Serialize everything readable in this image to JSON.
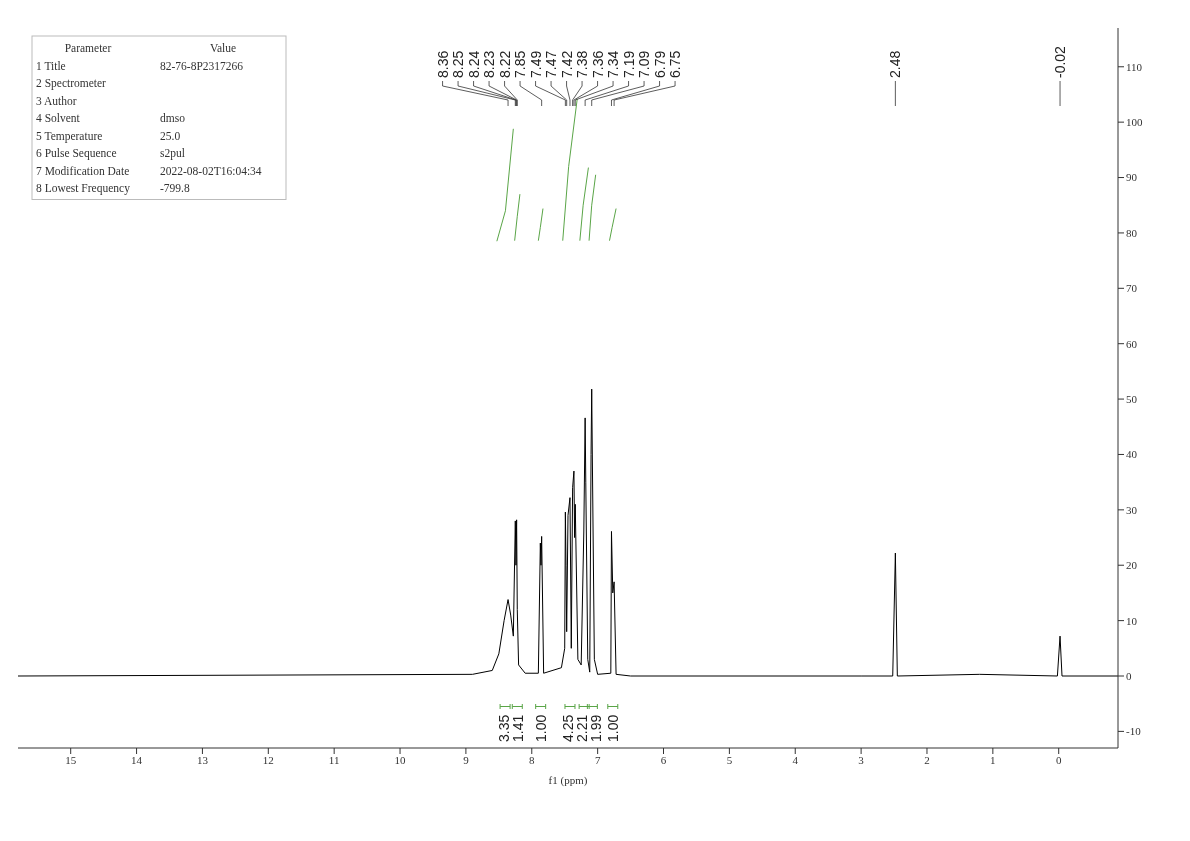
{
  "chart_data": {
    "type": "line",
    "xlabel": "f1 (ppm)",
    "xlim": [
      15.8,
      -0.9
    ],
    "xticks": [
      15,
      14,
      13,
      12,
      11,
      10,
      9,
      8,
      7,
      6,
      5,
      4,
      3,
      2,
      1,
      0
    ],
    "ylim": [
      -13,
      117
    ],
    "yticks": [
      -10,
      0,
      10,
      20,
      30,
      40,
      50,
      60,
      70,
      80,
      90,
      100,
      110
    ],
    "grid": false,
    "legend": false,
    "marker": "none",
    "line_style": "solid",
    "series": [
      {
        "color": "#000000",
        "x": [
          15.8,
          8.9,
          8.6,
          8.5,
          8.42,
          8.36,
          8.32,
          8.28,
          8.25,
          8.24,
          8.23,
          8.22,
          8.2,
          8.1,
          7.9,
          7.87,
          7.86,
          7.85,
          7.82,
          7.55,
          7.5,
          7.49,
          7.48,
          7.47,
          7.45,
          7.42,
          7.4,
          7.38,
          7.36,
          7.35,
          7.34,
          7.3,
          7.25,
          7.21,
          7.19,
          7.18,
          7.15,
          7.12,
          7.1,
          7.09,
          7.08,
          7.05,
          7,
          6.8,
          6.79,
          6.77,
          6.75,
          6.72,
          6.5,
          3,
          2.52,
          2.48,
          2.45,
          1.2,
          0.02,
          -0.02,
          -0.05,
          -0.9
        ],
        "values": [
          0,
          0.3,
          1,
          4,
          10,
          13.8,
          11,
          7.2,
          28,
          20,
          28.2,
          12,
          2,
          0.5,
          0.5,
          24,
          20,
          25.2,
          0.5,
          1.5,
          5,
          29.6,
          20,
          8,
          29,
          32.2,
          5,
          34,
          37,
          25,
          31,
          3,
          2,
          26,
          46.6,
          35,
          3,
          0.7,
          40,
          51.8,
          39,
          3,
          0.3,
          0.5,
          26.1,
          15,
          17,
          0.3,
          0,
          0,
          0,
          22.2,
          0,
          0.3,
          0,
          7.2,
          0,
          0
        ]
      },
      {
        "color": "#5aa547",
        "x": [
          8.53,
          8.4,
          8.28
        ],
        "values": [
          78.5,
          84,
          98.8
        ]
      },
      {
        "color": "#5aa547",
        "x": [
          8.26,
          8.22,
          8.18
        ],
        "values": [
          78.6,
          83,
          87
        ]
      },
      {
        "color": "#5aa547",
        "x": [
          7.9,
          7.87,
          7.83
        ],
        "values": [
          78.6,
          81,
          84.4
        ]
      },
      {
        "color": "#5aa547",
        "x": [
          7.53,
          7.44,
          7.31
        ],
        "values": [
          78.6,
          92,
          104.2
        ]
      },
      {
        "color": "#5aa547",
        "x": [
          7.27,
          7.22,
          7.14
        ],
        "values": [
          78.6,
          85,
          91.8
        ]
      },
      {
        "color": "#5aa547",
        "x": [
          7.13,
          7.09,
          7.03
        ],
        "values": [
          78.6,
          85,
          90.5
        ]
      },
      {
        "color": "#5aa547",
        "x": [
          6.82,
          6.78,
          6.72
        ],
        "values": [
          78.6,
          81,
          84.4
        ]
      }
    ],
    "annotations": [
      "Parameter\tValue",
      "1 Title\t82-76-8P2317266",
      "2 Spectrometer",
      "3 Author",
      "4 Solvent\tdmso",
      "5 Temperature\t25.0",
      "6 Pulse Sequence\ts2pul",
      "7 Modification Date\t2022-08-02T16:04:34",
      "8 Lowest Frequency\t-799.8",
      "3.35",
      "1.41",
      "1.00",
      "4.25",
      "2.21",
      "1.99",
      "1.00",
      {
        "text": "8.36",
        "x": 8.36
      },
      {
        "text": "8.25",
        "x": 8.25
      },
      {
        "text": "8.24",
        "x": 8.24
      },
      {
        "text": "8.23",
        "x": 8.23
      },
      {
        "text": "8.22",
        "x": 8.22
      },
      {
        "text": "7.85",
        "x": 7.85
      },
      {
        "text": "7.49",
        "x": 7.49
      },
      {
        "text": "7.47",
        "x": 7.47
      },
      {
        "text": "7.42",
        "x": 7.42
      },
      {
        "text": "7.38",
        "x": 7.38
      },
      {
        "text": "7.36",
        "x": 7.36
      },
      {
        "text": "7.34",
        "x": 7.34
      },
      {
        "text": "7.19",
        "x": 7.19
      },
      {
        "text": "7.09",
        "x": 7.09
      },
      {
        "text": "6.79",
        "x": 6.79
      },
      {
        "text": "6.75",
        "x": 6.75
      },
      {
        "text": "2.48",
        "x": 2.48
      },
      {
        "text": "-0.02",
        "x": -0.02
      }
    ]
  }
}
